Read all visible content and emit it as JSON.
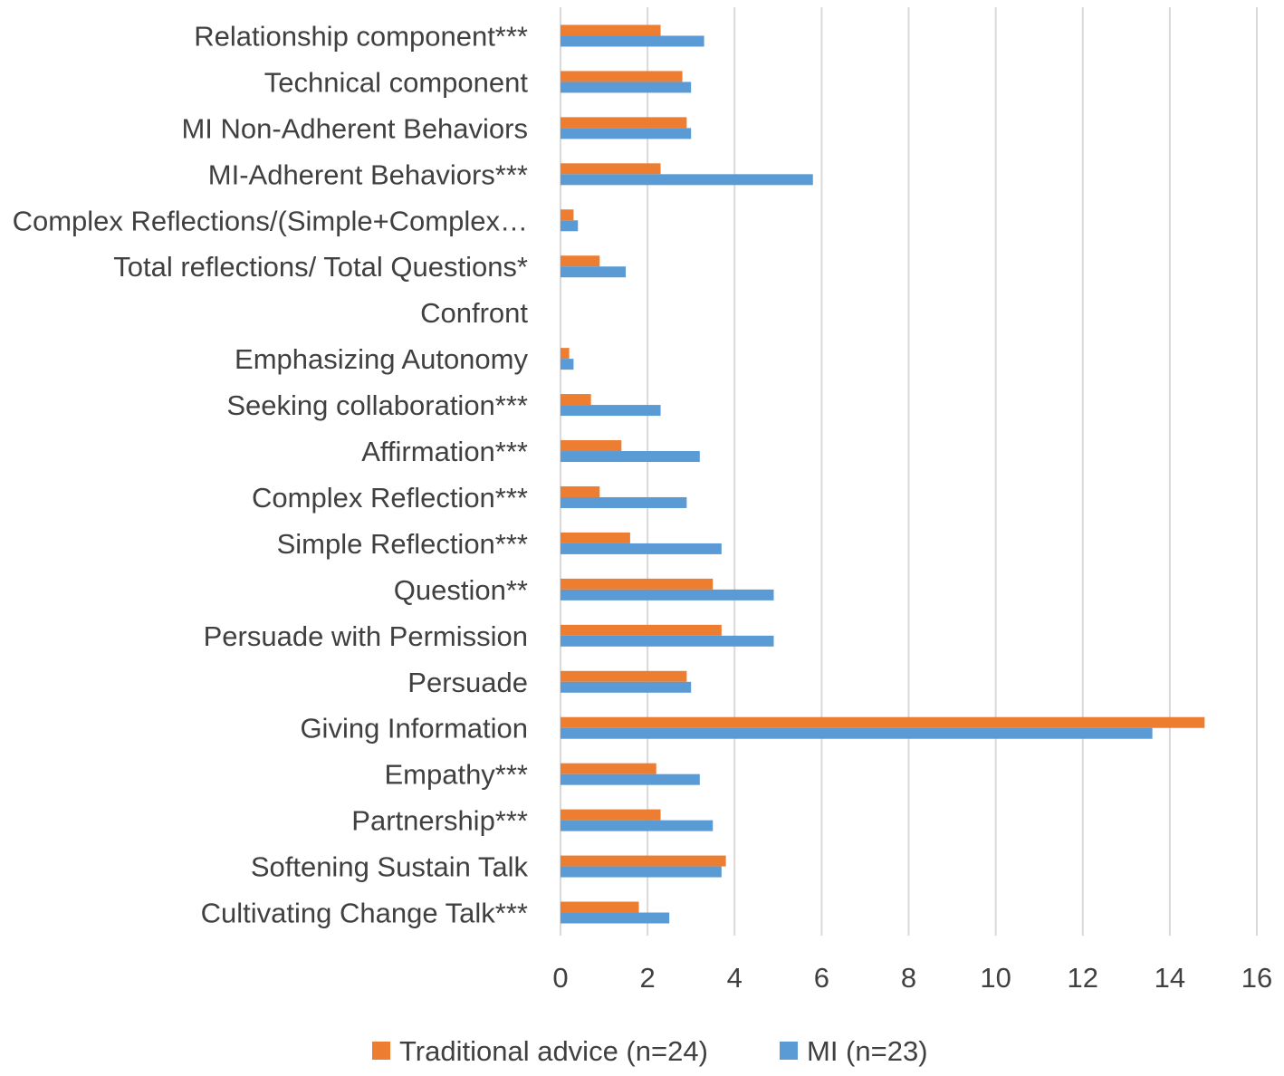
{
  "chart_data": {
    "type": "bar",
    "orientation": "horizontal",
    "title": "",
    "xlabel": "",
    "ylabel": "",
    "xlim": [
      0,
      16
    ],
    "x_ticks": [
      0,
      2,
      4,
      6,
      8,
      10,
      12,
      14,
      16
    ],
    "grid": true,
    "legend_position": "bottom",
    "categories": [
      "Relationship component***",
      "Technical component",
      "MI Non-Adherent Behaviors",
      "MI-Adherent Behaviors***",
      "Complex Reflections/(Simple+Complex…",
      "Total reflections/ Total Questions*",
      "Confront",
      "Emphasizing Autonomy",
      "Seeking collaboration***",
      "Affirmation***",
      "Complex Reflection***",
      "Simple Reflection***",
      "Question**",
      "Persuade with Permission",
      "Persuade",
      "Giving Information",
      "Empathy***",
      "Partnership***",
      "Softening Sustain Talk",
      "Cultivating Change Talk***"
    ],
    "series": [
      {
        "name": "Traditional advice (n=24)",
        "color": "#ED7D31",
        "values": [
          2.3,
          2.8,
          2.9,
          2.3,
          0.3,
          0.9,
          0,
          0.2,
          0.7,
          1.4,
          0.9,
          1.6,
          3.5,
          3.7,
          2.9,
          14.8,
          2.2,
          2.3,
          3.8,
          1.8
        ]
      },
      {
        "name": "MI (n=23)",
        "color": "#5B9BD5",
        "values": [
          3.3,
          3.0,
          3.0,
          5.8,
          0.4,
          1.5,
          0,
          0.3,
          2.3,
          3.2,
          2.9,
          3.7,
          4.9,
          4.9,
          3.0,
          13.6,
          3.2,
          3.5,
          3.7,
          2.5
        ]
      }
    ]
  }
}
